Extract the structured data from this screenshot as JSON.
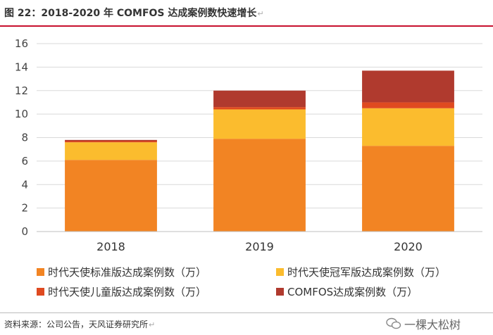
{
  "header": {
    "title": "图 22：2018-2020 年 COMFOS 达成案例数快速增长",
    "return_mark": "↵"
  },
  "footer": {
    "source": "资料来源：公司公告，天风证券研究所",
    "return_mark": "↵",
    "watermark": "一棵大松树"
  },
  "chart_data": {
    "type": "bar",
    "stacked": true,
    "title": "",
    "xlabel": "",
    "ylabel": "",
    "categories": [
      "2018",
      "2019",
      "2020"
    ],
    "ylim": [
      0,
      16
    ],
    "yticks": [
      0,
      2,
      4,
      6,
      8,
      10,
      12,
      14,
      16
    ],
    "grid": true,
    "legend_position": "bottom",
    "series": [
      {
        "name": "时代天使标准版达成案例数（万）",
        "color": "#f28423",
        "values": [
          6.1,
          7.9,
          7.3
        ]
      },
      {
        "name": "时代天使冠军版达成案例数（万）",
        "color": "#fbbc2e",
        "values": [
          1.5,
          2.5,
          3.2
        ]
      },
      {
        "name": "时代天使儿童版达成案例数（万）",
        "color": "#df4a20",
        "values": [
          0.1,
          0.2,
          0.5
        ]
      },
      {
        "name": "COMFOS达成案例数（万）",
        "color": "#b03a2e",
        "values": [
          0.1,
          1.4,
          2.7
        ]
      }
    ]
  }
}
